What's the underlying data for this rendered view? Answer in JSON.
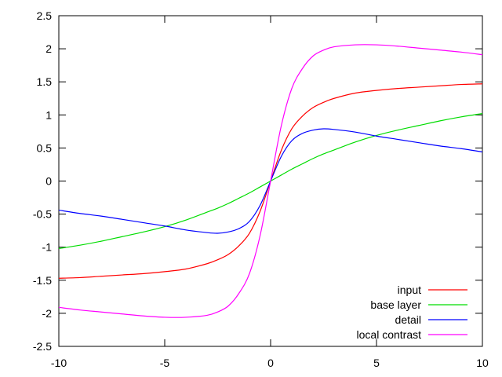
{
  "chart_data": {
    "type": "line",
    "title": "",
    "xlabel": "",
    "ylabel": "",
    "xlim": [
      -10,
      10
    ],
    "ylim": [
      -2.5,
      2.5
    ],
    "grid": false,
    "legend_position": "bottom-right",
    "x_ticks": [
      "-10",
      "-5",
      "0",
      "5",
      "10"
    ],
    "y_ticks": [
      "-2.5",
      "-2",
      "-1.5",
      "-1",
      "-0.5",
      "0",
      "0.5",
      "1",
      "1.5",
      "2",
      "2.5"
    ],
    "x": [
      -10,
      -9,
      -8,
      -7,
      -6,
      -5,
      -4,
      -3,
      -2.5,
      -2,
      -1.5,
      -1,
      -0.5,
      0,
      0.5,
      1,
      1.5,
      2,
      2.5,
      3,
      4,
      5,
      6,
      7,
      8,
      9,
      10
    ],
    "series": [
      {
        "name": "input",
        "color": "#ff0000",
        "values": [
          -1.47,
          -1.46,
          -1.44,
          -1.42,
          -1.4,
          -1.37,
          -1.33,
          -1.25,
          -1.19,
          -1.11,
          -0.98,
          -0.79,
          -0.46,
          0,
          0.46,
          0.79,
          0.98,
          1.11,
          1.19,
          1.25,
          1.33,
          1.37,
          1.4,
          1.42,
          1.44,
          1.46,
          1.47
        ]
      },
      {
        "name": "base layer",
        "color": "#00dd00",
        "values": [
          -1.02,
          -0.97,
          -0.91,
          -0.84,
          -0.77,
          -0.69,
          -0.59,
          -0.47,
          -0.41,
          -0.34,
          -0.26,
          -0.18,
          -0.09,
          0,
          0.09,
          0.18,
          0.26,
          0.34,
          0.41,
          0.47,
          0.59,
          0.69,
          0.77,
          0.84,
          0.91,
          0.97,
          1.02
        ]
      },
      {
        "name": "detail",
        "color": "#0000ff",
        "values": [
          -0.44,
          -0.49,
          -0.53,
          -0.58,
          -0.63,
          -0.68,
          -0.74,
          -0.78,
          -0.79,
          -0.77,
          -0.72,
          -0.61,
          -0.37,
          0,
          0.37,
          0.61,
          0.72,
          0.77,
          0.79,
          0.78,
          0.74,
          0.68,
          0.63,
          0.58,
          0.53,
          0.49,
          0.44
        ]
      },
      {
        "name": "local contrast",
        "color": "#ff00ff",
        "values": [
          -1.91,
          -1.95,
          -1.98,
          -2.01,
          -2.04,
          -2.06,
          -2.06,
          -2.03,
          -1.98,
          -1.89,
          -1.7,
          -1.4,
          -0.83,
          0,
          0.83,
          1.4,
          1.7,
          1.89,
          1.98,
          2.03,
          2.06,
          2.06,
          2.04,
          2.01,
          1.98,
          1.95,
          1.91
        ]
      }
    ]
  }
}
